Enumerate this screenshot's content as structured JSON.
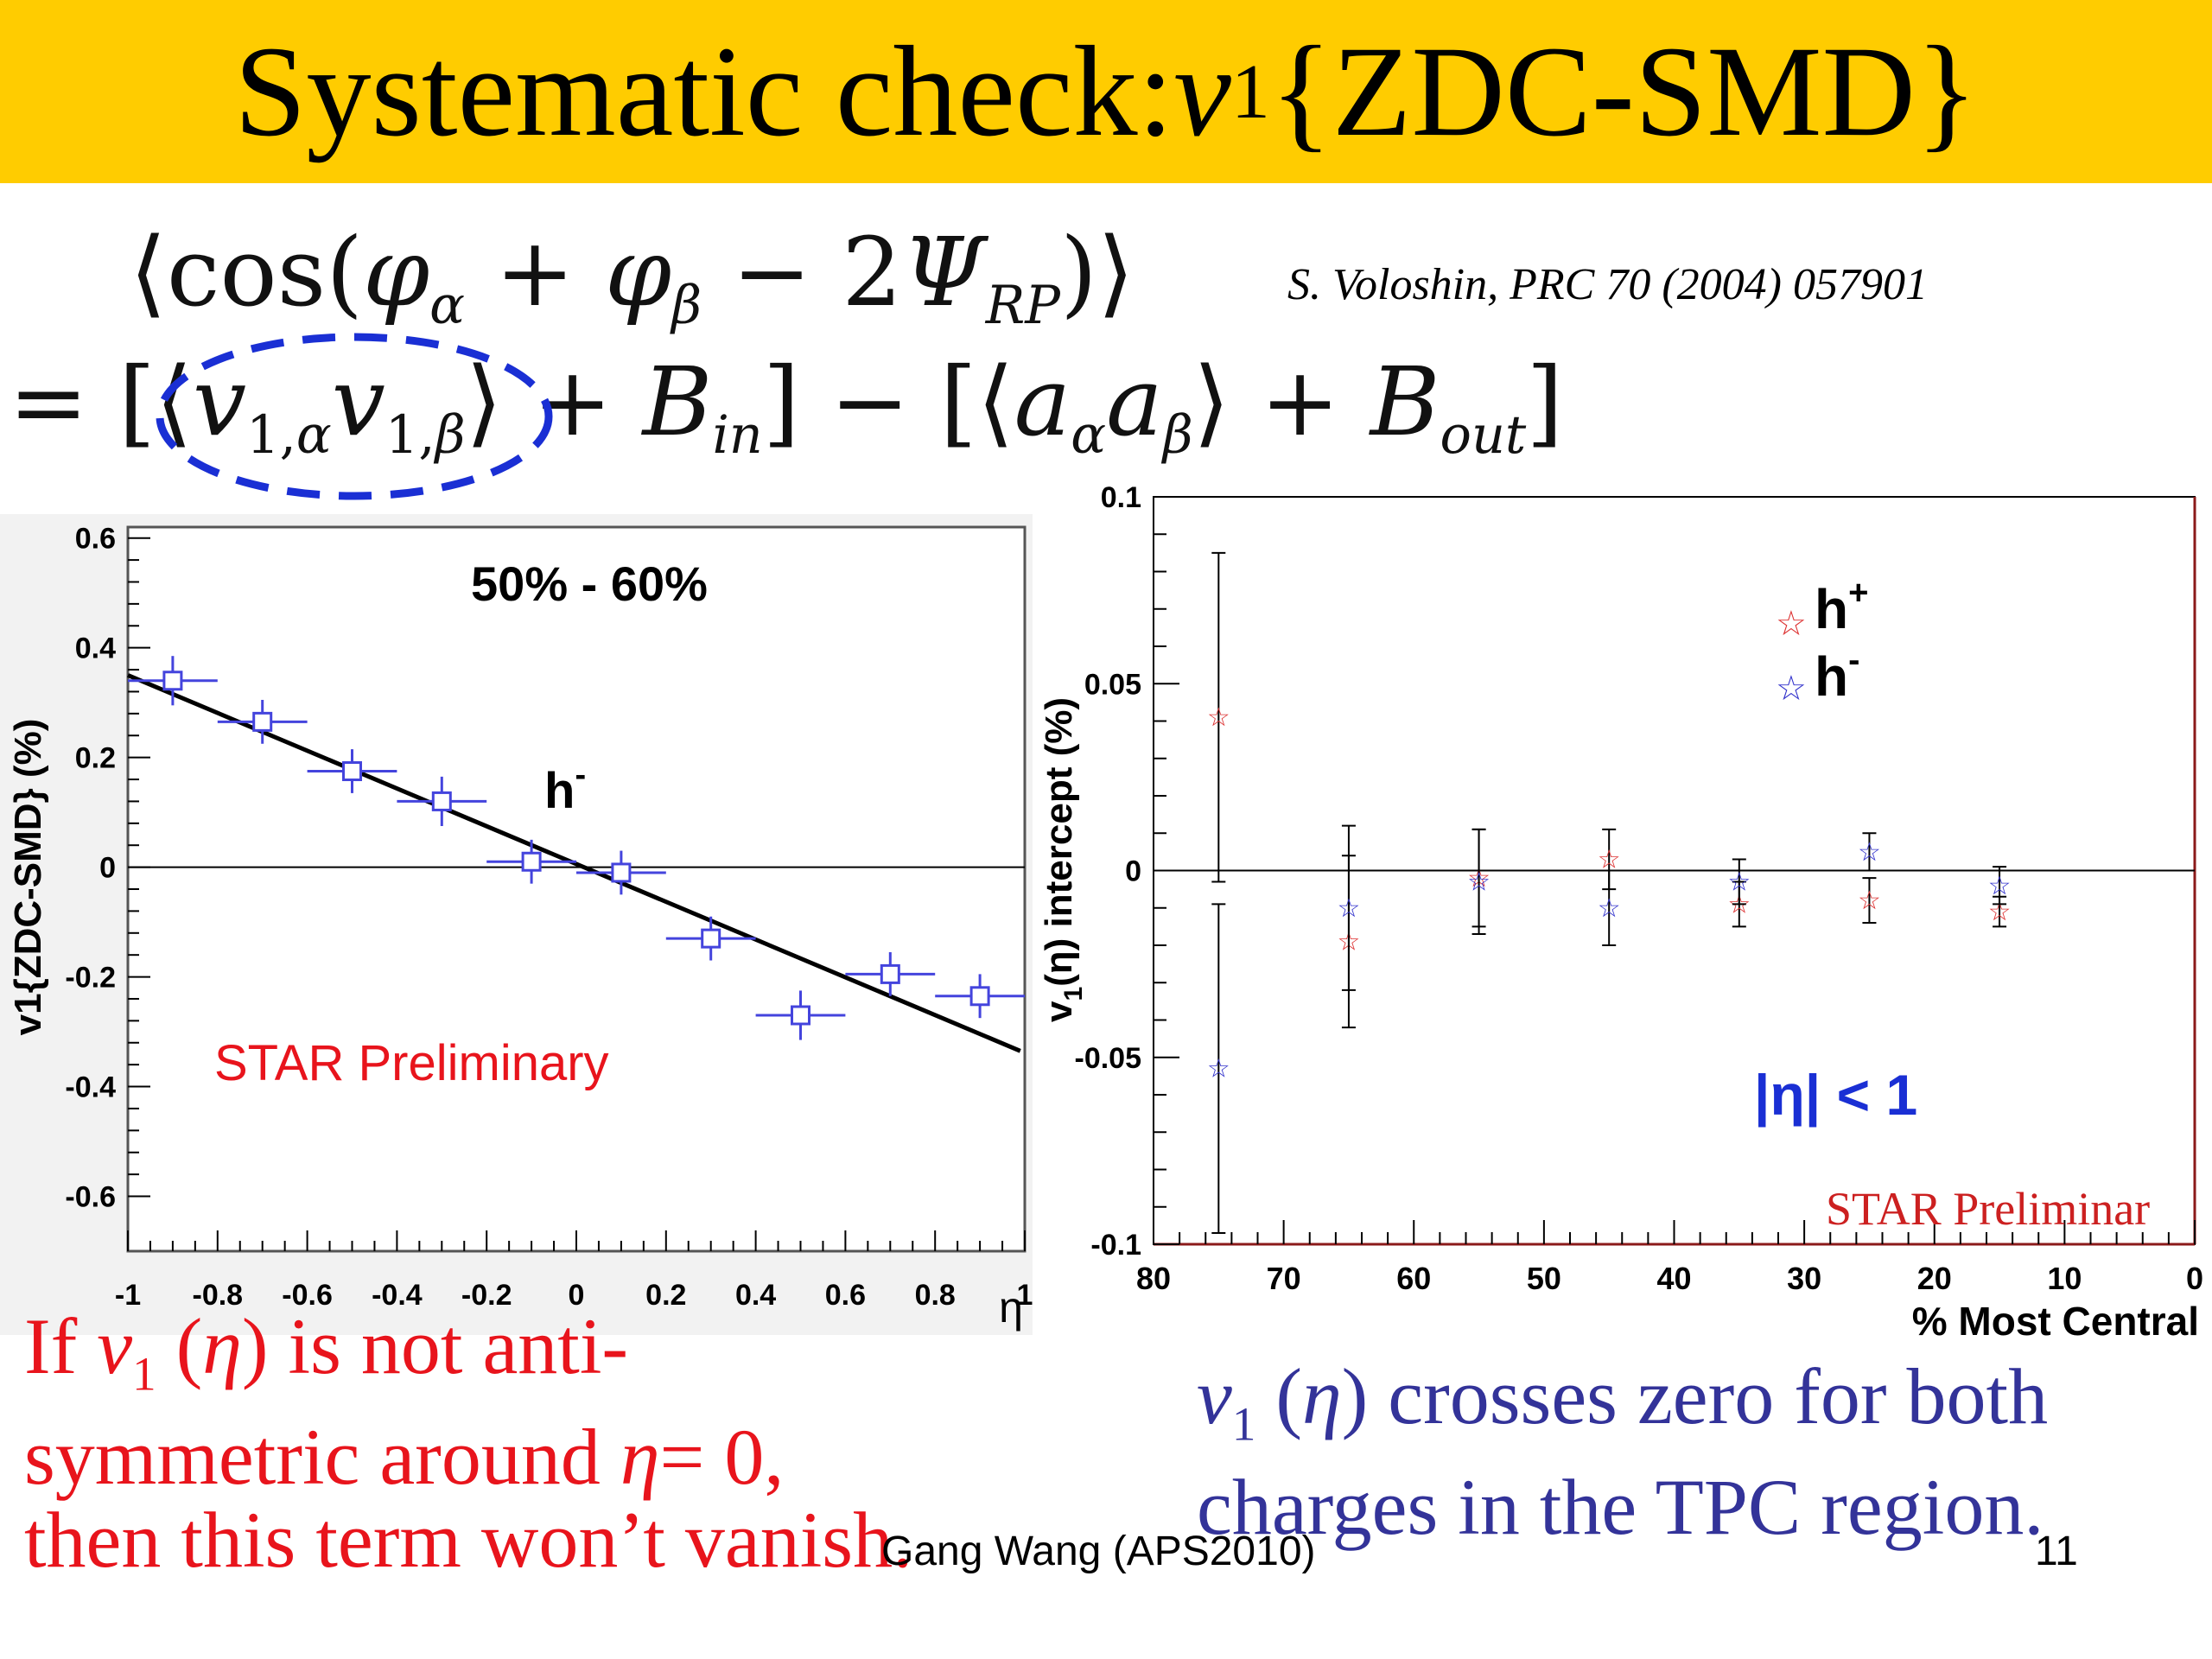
{
  "slide": {
    "title_text": "Systematic check: ",
    "title_var": "v",
    "title_sub": "1",
    "title_suffix": "{ZDC-SMD}",
    "reference": "S. Voloshin, PRC 70 (2004) 057901",
    "note_left": {
      "line1_a": "If ",
      "var": "v",
      "sub": "1",
      "line1_b": " (",
      "eta": "η",
      "line1_c": ") is not anti-",
      "line2_a": "symmetric around ",
      "line2_eta": "η",
      "line2_b": "= 0,",
      "line3": "then this term won’t vanish."
    },
    "note_right": {
      "var": "v",
      "sub": "1",
      "a": " (",
      "eta": "η",
      "b": ") crosses zero for both",
      "line2": "charges in the TPC region."
    },
    "footer": "Gang Wang (APS2010)",
    "page_number": "11",
    "colors": {
      "title_bar": "#ffcc00",
      "note_left": "#e8141c",
      "note_right": "#333399",
      "ellipse": "#1a2fd4"
    }
  },
  "chart_data": [
    {
      "type": "scatter",
      "title": "50% - 60%",
      "xlabel": "η",
      "ylabel": "v1{ZDC-SMD} (%)",
      "xlim": [
        -1,
        1
      ],
      "ylim": [
        -0.7,
        0.62
      ],
      "xticks": [
        -1,
        -0.8,
        -0.6,
        -0.4,
        -0.2,
        0,
        0.2,
        0.4,
        0.6,
        0.8,
        1
      ],
      "xtick_labels": [
        "-1",
        "-0.8",
        "-0.6",
        "-0.4",
        "-0.2",
        "0",
        "0.2",
        "0.4",
        "0.6",
        "0.8",
        "1"
      ],
      "yticks": [
        -0.6,
        -0.4,
        -0.2,
        0,
        0.2,
        0.4,
        0.6
      ],
      "ytick_labels": [
        "-0.6",
        "-0.4",
        "-0.2",
        "0",
        "0.2",
        "0.4",
        "0.6"
      ],
      "series": [
        {
          "name": "h-",
          "label_main": "h",
          "label_sup": "-",
          "color": "#4444dd",
          "x": [
            -0.9,
            -0.7,
            -0.5,
            -0.3,
            -0.1,
            0.1,
            0.3,
            0.5,
            0.7,
            0.9
          ],
          "y": [
            0.34,
            0.265,
            0.175,
            0.12,
            0.01,
            -0.01,
            -0.13,
            -0.27,
            -0.195,
            -0.235
          ],
          "xerr": 0.1,
          "yerr": [
            0.045,
            0.04,
            0.04,
            0.045,
            0.04,
            0.04,
            0.04,
            0.045,
            0.04,
            0.04
          ]
        }
      ],
      "fit_line": {
        "x": [
          -1,
          0.99
        ],
        "y": [
          0.35,
          -0.335
        ],
        "color": "#000000"
      },
      "annotation": "STAR Preliminary",
      "annotation_color": "#e8141c"
    },
    {
      "type": "scatter",
      "xlabel": "% Most Central",
      "ylabel_main": "v",
      "ylabel_sub": "1",
      "ylabel_rest": "(η)  intercept (%)",
      "xlim": [
        80,
        0
      ],
      "ylim": [
        -0.1,
        0.1
      ],
      "xticks": [
        80,
        70,
        60,
        50,
        40,
        30,
        20,
        10,
        0
      ],
      "xtick_labels": [
        "80",
        "70",
        "60",
        "50",
        "40",
        "30",
        "20",
        "10",
        "0"
      ],
      "yticks": [
        -0.1,
        -0.05,
        0,
        0.05,
        0.1
      ],
      "ytick_labels": [
        "-0.1",
        "-0.05",
        "0",
        "0.05",
        "0.1"
      ],
      "series": [
        {
          "name": "h+",
          "label_main": "h",
          "label_sup": "+",
          "color": "#dd3333",
          "x": [
            75,
            65,
            55,
            45,
            35,
            25,
            15
          ],
          "y": [
            0.041,
            -0.019,
            -0.002,
            0.003,
            -0.009,
            -0.008,
            -0.011
          ],
          "yerr": [
            0.044,
            0.023,
            0.013,
            0.008,
            0.006,
            0.006,
            0.004
          ]
        },
        {
          "name": "h-",
          "label_main": "h",
          "label_sup": "-",
          "color": "#3333cc",
          "x": [
            75,
            65,
            55,
            45,
            35,
            25,
            15
          ],
          "y": [
            -0.053,
            -0.01,
            -0.003,
            -0.01,
            -0.003,
            0.005,
            -0.004
          ],
          "yerr": [
            0.044,
            0.022,
            0.014,
            0.01,
            0.006,
            0.005,
            0.005
          ]
        }
      ],
      "annotation": "|η| < 1",
      "annotation_color": "#1a2fd4",
      "annotation2": "STAR Preliminar",
      "annotation2_color": "#cc2020"
    }
  ]
}
